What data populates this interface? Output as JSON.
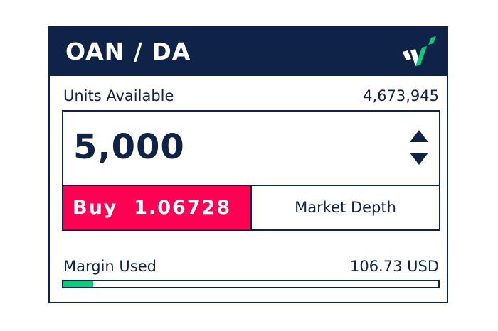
{
  "header": {
    "title": "OAN / DA",
    "logo_icon": "oanda-logo-icon",
    "colors": {
      "background": "#0f2247",
      "logo_accent": "#0ccb7a"
    }
  },
  "units": {
    "label": "Units Available",
    "value": "4,673,945"
  },
  "quantity": {
    "value": "5,000",
    "increment_icon": "triangle-up-icon",
    "decrement_icon": "triangle-down-icon"
  },
  "actions": {
    "buy_label": "Buy  1.06728",
    "buy_color": "#ff0055",
    "market_depth_label": "Market Depth"
  },
  "margin": {
    "label": "Margin Used",
    "value": "106.73 USD",
    "progress_percent": 8,
    "progress_color": "#0ccb7a"
  }
}
